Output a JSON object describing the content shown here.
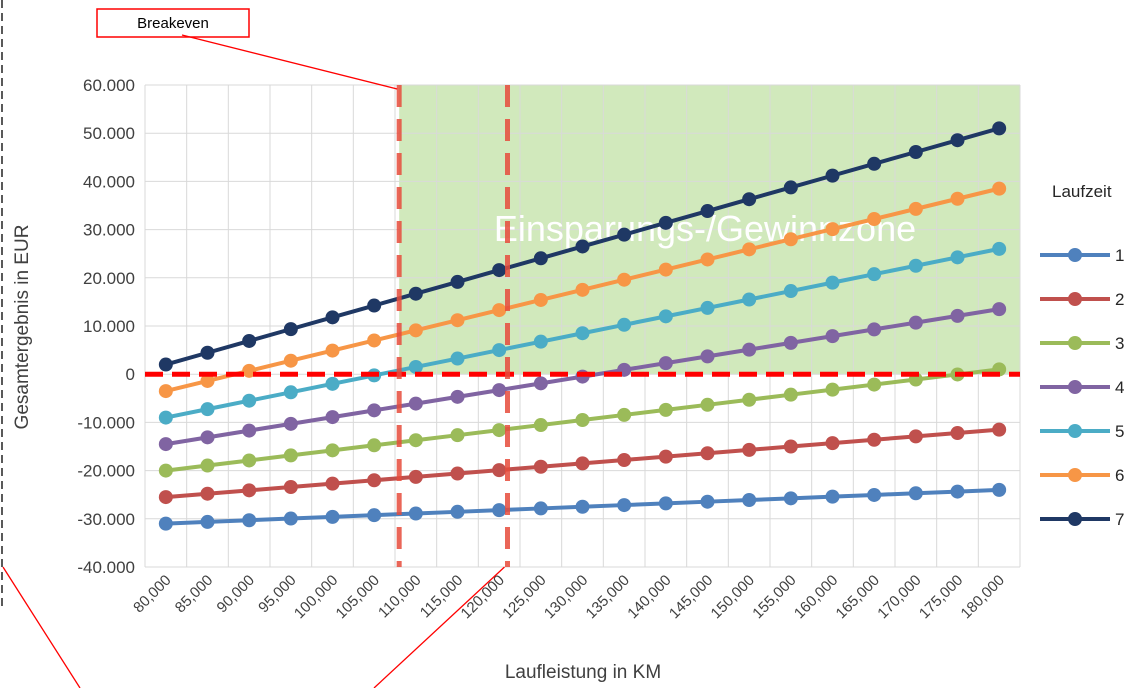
{
  "chart_data": {
    "type": "line",
    "title": "",
    "xlabel": "Laufleistung in KM",
    "ylabel": "Gesamtergebnis in EUR",
    "ylim": [
      -40000,
      60000
    ],
    "ytick_step": 10000,
    "ytick_labels": [
      "60.000",
      "50.000",
      "40.000",
      "30.000",
      "20.000",
      "10.000",
      "0",
      "-10.000",
      "-20.000",
      "-30.000",
      "-40.000"
    ],
    "x": [
      80000,
      85000,
      90000,
      95000,
      100000,
      105000,
      110000,
      115000,
      120000,
      125000,
      130000,
      135000,
      140000,
      145000,
      150000,
      155000,
      160000,
      165000,
      170000,
      175000,
      180000
    ],
    "x_tick_labels": [
      "80,000",
      "85,000",
      "90,000",
      "95,000",
      "100,000",
      "105,000",
      "110,000",
      "115,000",
      "120,000",
      "125,000",
      "130,000",
      "135,000",
      "140,000",
      "145,000",
      "150,000",
      "155,000",
      "160,000",
      "165,000",
      "170,000",
      "175,000",
      "180,000"
    ],
    "legend_title": "Laufzeit",
    "legend_position": "right",
    "grid": true,
    "series": [
      {
        "name": "1",
        "color": "#4F81BD",
        "values": [
          -31000,
          -30650,
          -30300,
          -29950,
          -29600,
          -29250,
          -28900,
          -28550,
          -28200,
          -27850,
          -27500,
          -27150,
          -26800,
          -26450,
          -26100,
          -25750,
          -25400,
          -25050,
          -24700,
          -24350,
          -24000
        ]
      },
      {
        "name": "2",
        "color": "#C0504D",
        "values": [
          -25500,
          -24800,
          -24100,
          -23400,
          -22700,
          -22000,
          -21300,
          -20600,
          -19900,
          -19200,
          -18500,
          -17800,
          -17100,
          -16400,
          -15700,
          -15000,
          -14300,
          -13600,
          -12900,
          -12200,
          -11500
        ]
      },
      {
        "name": "3",
        "color": "#9BBB59",
        "values": [
          -20000,
          -18950,
          -17900,
          -16850,
          -15800,
          -14750,
          -13700,
          -12650,
          -11600,
          -10550,
          -9500,
          -8450,
          -7400,
          -6350,
          -5300,
          -4250,
          -3200,
          -2150,
          -1100,
          -50,
          1000
        ]
      },
      {
        "name": "4",
        "color": "#8064A2",
        "values": [
          -14500,
          -13100,
          -11700,
          -10300,
          -8900,
          -7500,
          -6100,
          -4700,
          -3300,
          -1900,
          -500,
          900,
          2300,
          3700,
          5100,
          6500,
          7900,
          9300,
          10700,
          12100,
          13500
        ]
      },
      {
        "name": "5",
        "color": "#4BACC6",
        "values": [
          -9000,
          -7250,
          -5500,
          -3750,
          -2000,
          -250,
          1500,
          3250,
          5000,
          6750,
          8500,
          10250,
          12000,
          13750,
          15500,
          17250,
          19000,
          20750,
          22500,
          24250,
          26000
        ]
      },
      {
        "name": "6",
        "color": "#F79646",
        "values": [
          -3500,
          -1400,
          700,
          2800,
          4900,
          7000,
          9100,
          11200,
          13300,
          15400,
          17500,
          19600,
          21700,
          23800,
          25900,
          28000,
          30100,
          32200,
          34300,
          36400,
          38500
        ]
      },
      {
        "name": "7",
        "color": "#1F3864",
        "values": [
          2000,
          4450,
          6900,
          9350,
          11800,
          14250,
          16700,
          19150,
          21600,
          24050,
          26500,
          28950,
          31400,
          33850,
          36300,
          38750,
          41200,
          43650,
          46100,
          48550,
          51000
        ]
      }
    ],
    "annotations": {
      "zone_label": "Einsparungs-/Gewinnzone",
      "zone_color": "#D1E9BC",
      "zone_x_start": 108000,
      "breakeven_label": "Breakeven",
      "breakeven_x": [
        108000,
        121000
      ],
      "zero_line_color": "#FF0000",
      "marker_color": "#E74C3C"
    }
  }
}
